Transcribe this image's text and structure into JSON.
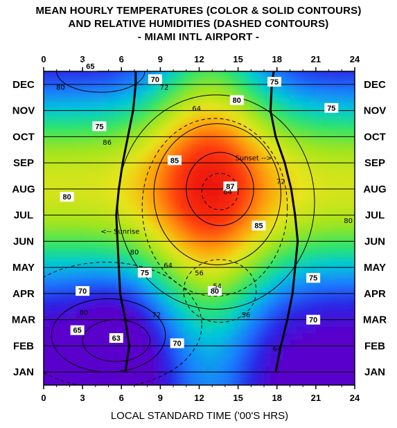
{
  "chart_data": {
    "type": "heatmap",
    "title_lines": [
      "MEAN HOURLY TEMPERATURES (COLOR & SOLID CONTOURS)",
      "AND RELATIVE HUMIDITIES (DASHED CONTOURS)",
      "- MIAMI INTL AIRPORT -"
    ],
    "xlabel": "LOCAL STANDARD TIME ('00'S HRS)",
    "xlim": [
      0,
      24
    ],
    "x_ticks": [
      0,
      3,
      6,
      9,
      12,
      15,
      18,
      21,
      24
    ],
    "x_tick_labels": [
      "0",
      "3",
      "6",
      "9",
      "12",
      "15",
      "18",
      "21",
      "24"
    ],
    "months": [
      "JAN",
      "FEB",
      "MAR",
      "APR",
      "MAY",
      "JUN",
      "JUL",
      "AUG",
      "SEP",
      "OCT",
      "NOV",
      "DEC"
    ],
    "temperature_labels": [
      {
        "value": "65",
        "hour": 3.6,
        "month": 12.2
      },
      {
        "value": "70",
        "hour": 8.6,
        "month": 11.7
      },
      {
        "value": "75",
        "hour": 17.8,
        "month": 11.6
      },
      {
        "value": "80",
        "hour": 14.9,
        "month": 10.9
      },
      {
        "value": "75",
        "hour": 22.2,
        "month": 10.6
      },
      {
        "value": "75",
        "hour": 4.3,
        "month": 9.9
      },
      {
        "value": "85",
        "hour": 10.1,
        "month": 8.6
      },
      {
        "value": "87",
        "hour": 14.4,
        "month": 7.6
      },
      {
        "value": "80",
        "hour": 1.8,
        "month": 7.2
      },
      {
        "value": "85",
        "hour": 16.6,
        "month": 6.1
      },
      {
        "value": "75",
        "hour": 7.8,
        "month": 4.3
      },
      {
        "value": "75",
        "hour": 20.8,
        "month": 4.1
      },
      {
        "value": "70",
        "hour": 3.0,
        "month": 3.6
      },
      {
        "value": "80",
        "hour": 13.2,
        "month": 3.6
      },
      {
        "value": "70",
        "hour": 20.8,
        "month": 2.5
      },
      {
        "value": "65",
        "hour": 2.6,
        "month": 2.1
      },
      {
        "value": "63",
        "hour": 5.6,
        "month": 1.8
      },
      {
        "value": "70",
        "hour": 10.3,
        "month": 1.6
      }
    ],
    "humidity_labels": [
      {
        "value": "80",
        "hour": 1.3,
        "month": 11.4
      },
      {
        "value": "72",
        "hour": 9.3,
        "month": 11.4
      },
      {
        "value": "64",
        "hour": 11.8,
        "month": 10.6
      },
      {
        "value": "86",
        "hour": 4.9,
        "month": 9.3
      },
      {
        "value": "64",
        "hour": 14.2,
        "month": 7.4
      },
      {
        "value": "72",
        "hour": 18.3,
        "month": 7.8
      },
      {
        "value": "80",
        "hour": 23.5,
        "month": 6.3
      },
      {
        "value": "80",
        "hour": 7.0,
        "month": 5.1
      },
      {
        "value": "64",
        "hour": 9.6,
        "month": 4.6
      },
      {
        "value": "56",
        "hour": 12.0,
        "month": 4.3
      },
      {
        "value": "54",
        "hour": 13.4,
        "month": 3.8
      },
      {
        "value": "80",
        "hour": 3.1,
        "month": 2.8
      },
      {
        "value": "72",
        "hour": 8.7,
        "month": 2.7
      },
      {
        "value": "56",
        "hour": 15.6,
        "month": 2.7
      },
      {
        "value": "64",
        "hour": 18.0,
        "month": 1.4
      }
    ],
    "annotations": [
      {
        "text": "Sunset -->",
        "hour": 16.2,
        "month": 8.7
      },
      {
        "text": "<-- Sunrise",
        "hour": 5.9,
        "month": 5.9
      }
    ],
    "sunrise_curve": {
      "hours": [
        6.3,
        6.6,
        6.3,
        5.9,
        5.8,
        5.7,
        5.6,
        5.8,
        6.1,
        6.5,
        6.9,
        7.1,
        7.1
      ],
      "months": [
        0.5,
        1.5,
        2.5,
        3.5,
        4.5,
        5.5,
        6.5,
        7.5,
        8.5,
        9.5,
        10.5,
        11.5,
        12.5
      ]
    },
    "sunset_curve": {
      "hours": [
        17.9,
        18.3,
        18.8,
        19.2,
        19.4,
        19.6,
        19.4,
        19.1,
        18.6,
        17.9,
        17.5,
        17.6,
        17.9
      ],
      "months": [
        0.5,
        1.5,
        2.5,
        3.5,
        4.5,
        5.5,
        6.5,
        7.5,
        8.5,
        9.5,
        10.5,
        11.5,
        12.5
      ]
    },
    "grid": true,
    "colorscale": [
      "#5a00cc",
      "#2a26e6",
      "#1a7bff",
      "#00c8d8",
      "#2ee46a",
      "#9ee51e",
      "#e8e41a",
      "#ff9a08",
      "#ff3a10",
      "#e81010"
    ],
    "colors": {
      "contour": "#000000",
      "background": "#ffffff"
    }
  }
}
